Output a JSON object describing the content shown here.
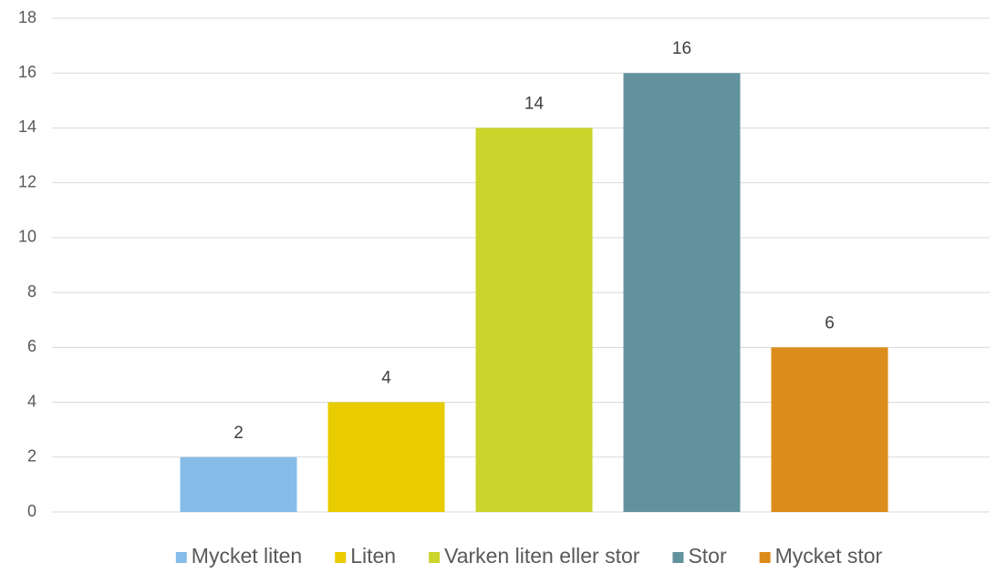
{
  "chart_data": {
    "type": "bar",
    "categories": [
      null
    ],
    "series": [
      {
        "name": "Mycket liten",
        "color": "#85bce8",
        "values": [
          2
        ]
      },
      {
        "name": "Liten",
        "color": "#e8cc00",
        "values": [
          4
        ]
      },
      {
        "name": "Varken liten eller stor",
        "color": "#cbd42a",
        "values": [
          14
        ]
      },
      {
        "name": "Stor",
        "color": "#62929e",
        "values": [
          16
        ]
      },
      {
        "name": "Mycket stor",
        "color": "#dc8c1a",
        "values": [
          6
        ]
      }
    ],
    "ylim": [
      0,
      18
    ],
    "yticks": [
      0,
      2,
      4,
      6,
      8,
      10,
      12,
      14,
      16,
      18
    ],
    "grid": true,
    "legend": "bottom"
  }
}
